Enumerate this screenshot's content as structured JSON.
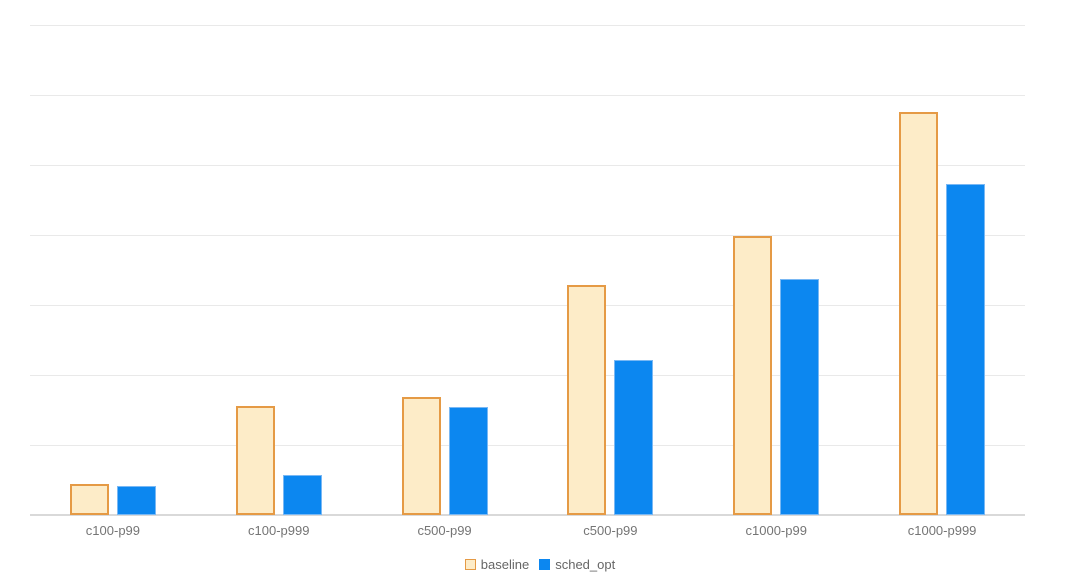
{
  "chart_data": {
    "type": "bar",
    "title": "",
    "xlabel": "",
    "ylabel": "",
    "categories": [
      "c100-p99",
      "c100-p999",
      "c500-p99",
      "c500-p99",
      "c1000-p99",
      "c1000-p999"
    ],
    "series": [
      {
        "name": "baseline",
        "fill": "#fdecc8",
        "border": "#e59a45",
        "values": [
          0.44,
          1.56,
          1.69,
          3.29,
          3.99,
          5.76
        ]
      },
      {
        "name": "sched_opt",
        "fill": "#0c87f0",
        "border": "#79b8f4",
        "values": [
          0.41,
          0.57,
          1.54,
          2.21,
          3.37,
          4.73
        ]
      }
    ],
    "ylim": [
      0,
      7
    ],
    "y_tick_labels": [],
    "gridline_count": 8,
    "grid": true,
    "legend_position": "bottom",
    "colors": {
      "background": "#ffffff",
      "gridline": "#e9e9e9",
      "axis_line": "#d9d9d9",
      "tick_label": "#757575",
      "legend_text": "#666666"
    }
  }
}
